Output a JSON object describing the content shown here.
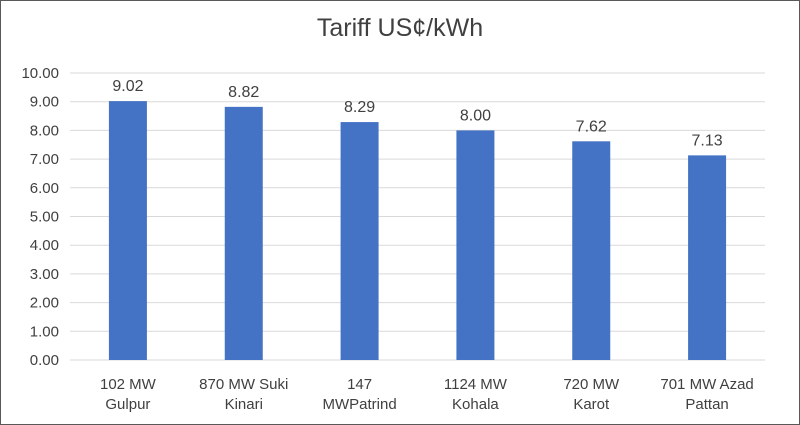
{
  "chart_data": {
    "type": "bar",
    "title": "Tariff US¢/kWh",
    "categories": [
      [
        "102 MW",
        "Gulpur"
      ],
      [
        "870 MW Suki",
        "Kinari"
      ],
      [
        "147",
        "MWPatrind"
      ],
      [
        "1124 MW",
        "Kohala"
      ],
      [
        "720 MW",
        "Karot"
      ],
      [
        "701 MW Azad",
        "Pattan"
      ]
    ],
    "values": [
      9.02,
      8.82,
      8.29,
      8.0,
      7.62,
      7.13
    ],
    "data_labels": [
      "9.02",
      "8.82",
      "8.29",
      "8.00",
      "7.62",
      "7.13"
    ],
    "ylim": [
      0,
      10
    ],
    "yticks": [
      "0.00",
      "1.00",
      "2.00",
      "3.00",
      "4.00",
      "5.00",
      "6.00",
      "7.00",
      "8.00",
      "9.00",
      "10.00"
    ],
    "grid": true,
    "legend": "none",
    "colors": {
      "bar": "#4472C4",
      "grid": "#D9D9D9",
      "text": "#404040"
    }
  }
}
